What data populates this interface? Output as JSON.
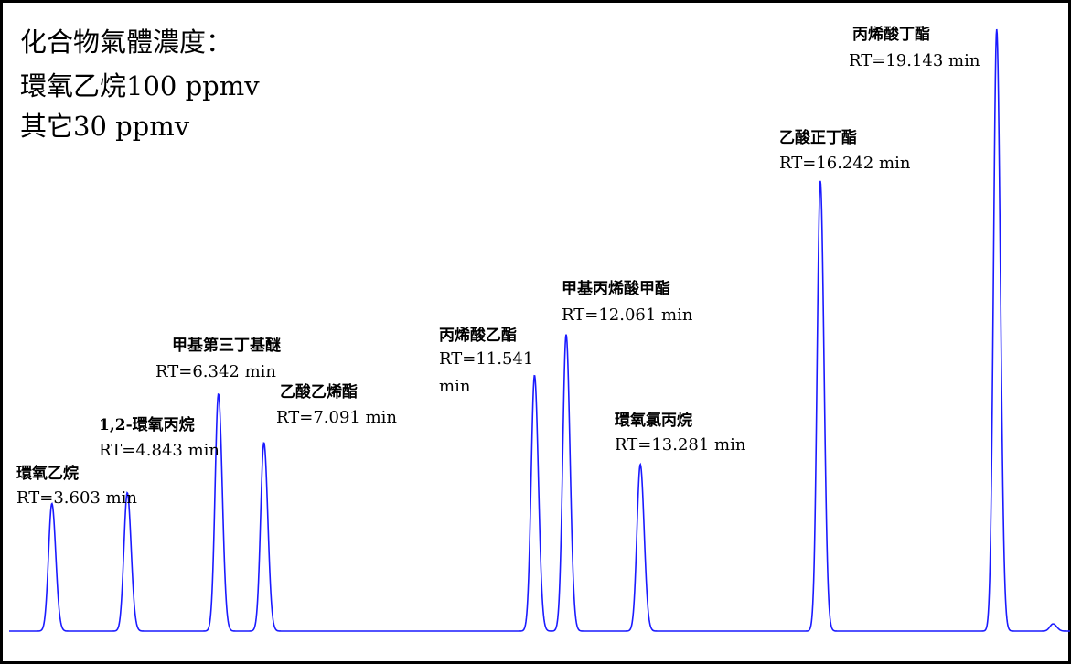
{
  "chart_data": {
    "type": "line",
    "title_lines": [
      "化合物氣體濃度：",
      "環氧乙烷100 ppmv",
      "其它30 ppmv"
    ],
    "xlabel": "",
    "ylabel": "",
    "grid": false,
    "line_color": "#1a1aff",
    "border_color": "#000000",
    "peaks": [
      {
        "name": "環氧乙烷",
        "rt_label": "RT=3.603 min",
        "rt": 3.603,
        "height": 0.212
      },
      {
        "name": "1,2-環氧丙烷",
        "rt_label": "RT=4.843 min",
        "rt": 4.843,
        "height": 0.23
      },
      {
        "name": "甲基第三丁基醚",
        "rt_label": "RT=6.342 min",
        "rt": 6.342,
        "height": 0.394
      },
      {
        "name": "乙酸乙烯酯",
        "rt_label": "RT=7.091 min",
        "rt": 7.091,
        "height": 0.313
      },
      {
        "name": "丙烯酸乙酯",
        "rt_label": [
          "RT=11.541",
          "min"
        ],
        "rt": 11.541,
        "height": 0.425
      },
      {
        "name": "甲基丙烯酸甲酯",
        "rt_label": "RT=12.061 min",
        "rt": 12.061,
        "height": 0.493
      },
      {
        "name": "環氧氯丙烷",
        "rt_label": "RT=13.281 min",
        "rt": 13.281,
        "height": 0.277
      },
      {
        "name": "乙酸正丁酯",
        "rt_label": "RT=16.242 min",
        "rt": 16.242,
        "height": 0.748
      },
      {
        "name": "丙烯酸丁酯",
        "rt_label": "RT=19.143 min",
        "rt": 19.143,
        "height": 1.0
      }
    ],
    "minor_peaks": [
      {
        "rt": 20.07,
        "height": 0.012
      }
    ]
  }
}
